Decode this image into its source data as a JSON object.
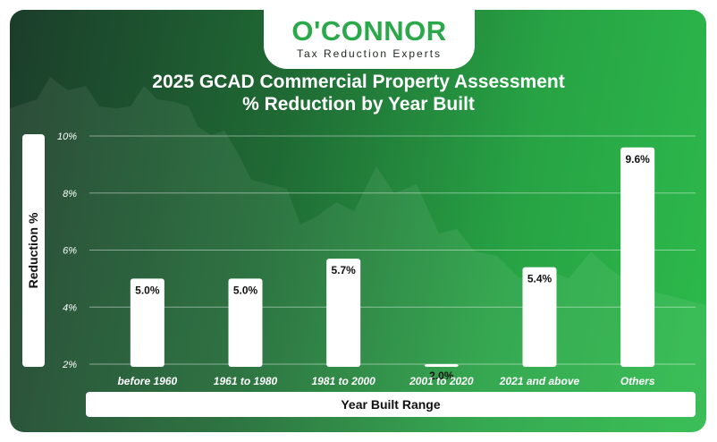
{
  "logo": {
    "brand": "O'CONNOR",
    "tagline": "Tax Reduction Experts"
  },
  "colors": {
    "accent": "#2aa84a",
    "bar": "#ffffff",
    "text_dark": "#111111"
  },
  "chart_data": {
    "type": "bar",
    "title": "2025 GCAD Commercial Property Assessment",
    "subtitle": "% Reduction by Year Built",
    "xlabel": "Year Built Range",
    "ylabel": "Reduction %",
    "categories": [
      "before 1960",
      "1961 to 1980",
      "1981 to 2000",
      "2001 to 2020",
      "2021 and above",
      "Others"
    ],
    "values": [
      5.0,
      5.0,
      5.7,
      2.0,
      5.4,
      9.6
    ],
    "data_labels": [
      "5.0%",
      "5.0%",
      "5.7%",
      "2.0%",
      "5.4%",
      "9.6%"
    ],
    "ylim": [
      2,
      10
    ],
    "yticks": [
      2,
      4,
      6,
      8,
      10
    ],
    "ytick_labels": [
      "2%",
      "4%",
      "6%",
      "8%",
      "10%"
    ],
    "grid": true
  }
}
